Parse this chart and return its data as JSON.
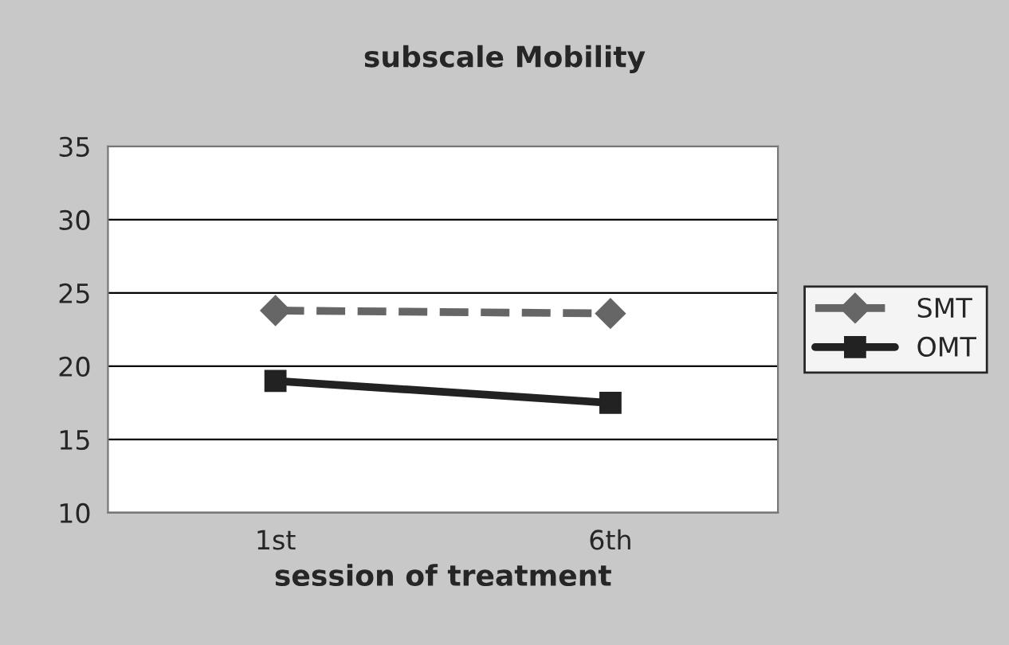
{
  "chart_data": {
    "type": "line",
    "title": "subscale Mobility",
    "xlabel": "session of treatment",
    "categories": [
      "1st",
      "6th"
    ],
    "series": [
      {
        "name": "SMT",
        "color": "#666666",
        "values": [
          23.8,
          23.6
        ],
        "marker": "diamond",
        "line_style": "dashed"
      },
      {
        "name": "OMT",
        "color": "#222222",
        "values": [
          19.0,
          17.5
        ],
        "marker": "square",
        "line_style": "solid"
      }
    ],
    "ylim": [
      10,
      35
    ],
    "yticks": [
      10,
      15,
      20,
      25,
      30,
      35
    ],
    "grid": "y",
    "legend": "right"
  }
}
